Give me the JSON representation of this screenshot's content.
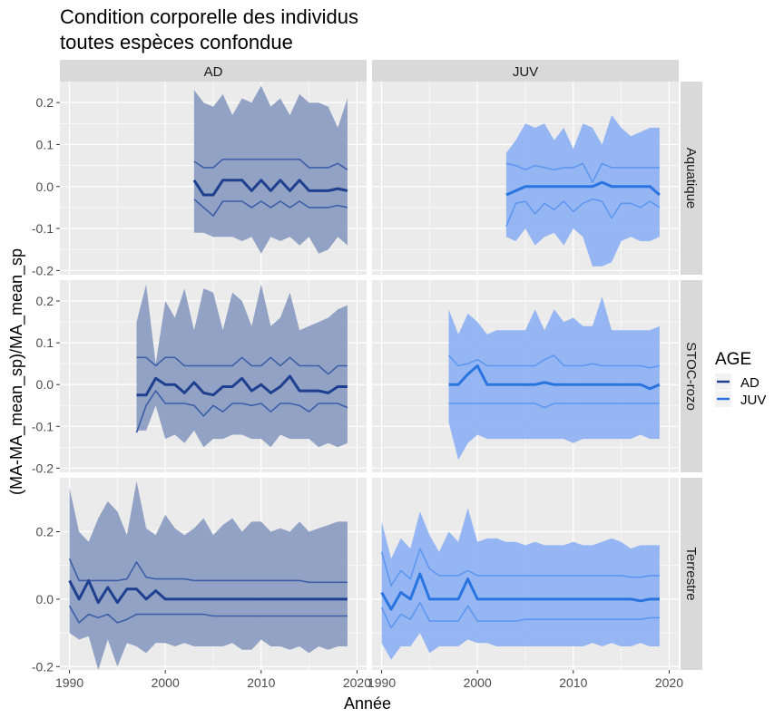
{
  "chart_data": {
    "type": "line",
    "title": "Condition corporelle des individus\ntoutes espèces confondue",
    "title_lines": [
      "Condition corporelle des individus",
      "toutes espèces confondue"
    ],
    "xlabel": "Année",
    "ylabel": "(MA-MA_mean_sp)/MA_mean_sp",
    "xlim": [
      1989,
      2021
    ],
    "x_ticks": [
      1990,
      2000,
      2010,
      2020
    ],
    "facet_columns": [
      "AD",
      "JUV"
    ],
    "facet_rows": [
      {
        "label": "Aquatique",
        "ylim": [
          -0.21,
          0.25
        ],
        "y_ticks": [
          -0.2,
          -0.1,
          0.0,
          0.1,
          0.2
        ],
        "y_tick_labels": [
          "-0.2",
          "-0.1",
          "0.0",
          "0.1",
          "0.2"
        ]
      },
      {
        "label": "STOC-rozo",
        "ylim": [
          -0.21,
          0.25
        ],
        "y_ticks": [
          -0.2,
          -0.1,
          0.0,
          0.1,
          0.2
        ],
        "y_tick_labels": [
          "-0.2",
          "-0.1",
          "0.0",
          "0.1",
          "0.2"
        ]
      },
      {
        "label": "Terrestre",
        "ylim": [
          -0.21,
          0.36
        ],
        "y_ticks": [
          -0.2,
          0.0,
          0.2
        ],
        "y_tick_labels": [
          "-0.2",
          "0.0",
          "0.2"
        ]
      }
    ],
    "legend": {
      "title": "AGE",
      "position": "right",
      "entries": [
        {
          "label": "AD",
          "color": "#1f3f8f"
        },
        {
          "label": "JUV",
          "color": "#2a74e0"
        }
      ]
    },
    "colors": {
      "AD": {
        "line": "#1f3f8f",
        "inner": "#3c5fa8",
        "ribbon": "#8a9bc0"
      },
      "JUV": {
        "line": "#2a74e0",
        "inner": "#5f97ee",
        "ribbon": "#8db1f3"
      },
      "panel_bg": "#ebebeb",
      "strip_bg": "#d9d9d9"
    },
    "panels": [
      {
        "row": "Aquatique",
        "col": "AD",
        "age": "AD",
        "x": [
          2003,
          2004,
          2005,
          2006,
          2007,
          2008,
          2009,
          2010,
          2011,
          2012,
          2013,
          2014,
          2015,
          2016,
          2017,
          2018,
          2019
        ],
        "mean": [
          0.015,
          -0.02,
          -0.02,
          0.015,
          0.015,
          0.015,
          -0.01,
          0.015,
          -0.01,
          0.015,
          -0.01,
          0.015,
          -0.01,
          -0.01,
          -0.01,
          -0.005,
          -0.01
        ],
        "inner_upper": [
          0.06,
          0.045,
          0.045,
          0.065,
          0.065,
          0.065,
          0.065,
          0.065,
          0.065,
          0.065,
          0.065,
          0.065,
          0.045,
          0.045,
          0.045,
          0.055,
          0.04
        ],
        "inner_lower": [
          -0.03,
          -0.05,
          -0.07,
          -0.035,
          -0.035,
          -0.035,
          -0.05,
          -0.035,
          -0.05,
          -0.035,
          -0.05,
          -0.035,
          -0.05,
          -0.05,
          -0.05,
          -0.045,
          -0.05
        ],
        "ribbon_upper": [
          0.23,
          0.2,
          0.19,
          0.22,
          0.17,
          0.21,
          0.2,
          0.24,
          0.19,
          0.21,
          0.17,
          0.22,
          0.2,
          0.2,
          0.19,
          0.14,
          0.21
        ],
        "ribbon_lower": [
          -0.11,
          -0.11,
          -0.12,
          -0.12,
          -0.12,
          -0.13,
          -0.12,
          -0.16,
          -0.12,
          -0.13,
          -0.12,
          -0.14,
          -0.12,
          -0.16,
          -0.15,
          -0.12,
          -0.14
        ]
      },
      {
        "row": "Aquatique",
        "col": "JUV",
        "age": "JUV",
        "x": [
          2003,
          2004,
          2005,
          2006,
          2007,
          2008,
          2009,
          2010,
          2011,
          2012,
          2013,
          2014,
          2015,
          2016,
          2017,
          2018,
          2019
        ],
        "mean": [
          -0.02,
          -0.01,
          0.0,
          0.0,
          0.0,
          0.0,
          0.0,
          0.0,
          0.0,
          0.0,
          0.01,
          0.0,
          0.0,
          0.0,
          0.0,
          0.0,
          -0.02
        ],
        "inner_upper": [
          0.055,
          0.05,
          0.04,
          0.05,
          0.045,
          0.04,
          0.045,
          0.045,
          0.055,
          0.01,
          0.055,
          0.045,
          0.045,
          0.045,
          0.045,
          0.045,
          0.045
        ],
        "inner_lower": [
          -0.095,
          -0.04,
          -0.035,
          -0.065,
          -0.04,
          -0.055,
          -0.035,
          -0.06,
          -0.04,
          -0.03,
          -0.035,
          -0.075,
          -0.04,
          -0.04,
          -0.05,
          -0.035,
          -0.05
        ],
        "ribbon_upper": [
          0.08,
          0.11,
          0.15,
          0.14,
          0.15,
          0.11,
          0.14,
          0.09,
          0.15,
          0.14,
          0.1,
          0.17,
          0.14,
          0.12,
          0.13,
          0.14,
          0.14
        ],
        "ribbon_lower": [
          -0.12,
          -0.13,
          -0.1,
          -0.14,
          -0.12,
          -0.11,
          -0.14,
          -0.1,
          -0.12,
          -0.19,
          -0.19,
          -0.18,
          -0.13,
          -0.12,
          -0.13,
          -0.13,
          -0.12
        ]
      },
      {
        "row": "STOC-rozo",
        "col": "AD",
        "age": "AD",
        "x": [
          1997,
          1998,
          1999,
          2000,
          2001,
          2002,
          2003,
          2004,
          2005,
          2006,
          2007,
          2008,
          2009,
          2010,
          2011,
          2012,
          2013,
          2014,
          2015,
          2016,
          2017,
          2018,
          2019
        ],
        "mean": [
          -0.025,
          -0.025,
          0.015,
          0.0,
          0.0,
          -0.02,
          0.005,
          -0.02,
          -0.025,
          -0.005,
          -0.005,
          0.015,
          -0.015,
          0.0,
          -0.02,
          -0.005,
          0.02,
          -0.015,
          -0.015,
          -0.015,
          -0.02,
          -0.005,
          -0.005
        ],
        "inner_upper": [
          0.065,
          0.065,
          0.045,
          0.065,
          0.065,
          0.045,
          0.045,
          0.045,
          0.045,
          0.045,
          0.045,
          0.065,
          0.045,
          0.045,
          0.065,
          0.045,
          0.065,
          0.045,
          0.045,
          0.045,
          0.025,
          0.045,
          0.045
        ],
        "inner_lower": [
          -0.115,
          -0.05,
          -0.015,
          -0.045,
          -0.045,
          -0.045,
          -0.05,
          -0.075,
          -0.05,
          -0.065,
          -0.045,
          -0.045,
          -0.05,
          -0.045,
          -0.065,
          -0.045,
          -0.045,
          -0.05,
          -0.065,
          -0.045,
          -0.045,
          -0.045,
          -0.055
        ],
        "ribbon_upper": [
          0.15,
          0.24,
          0.05,
          0.2,
          0.16,
          0.23,
          0.13,
          0.23,
          0.22,
          0.13,
          0.22,
          0.2,
          0.14,
          0.24,
          0.14,
          0.16,
          0.22,
          0.13,
          0.14,
          0.15,
          0.16,
          0.18,
          0.19
        ],
        "ribbon_lower": [
          -0.11,
          -0.11,
          -0.05,
          -0.13,
          -0.12,
          -0.14,
          -0.11,
          -0.15,
          -0.13,
          -0.13,
          -0.12,
          -0.12,
          -0.13,
          -0.13,
          -0.15,
          -0.12,
          -0.13,
          -0.13,
          -0.13,
          -0.15,
          -0.14,
          -0.15,
          -0.14
        ]
      },
      {
        "row": "STOC-rozo",
        "col": "JUV",
        "age": "JUV",
        "x": [
          1997,
          1998,
          1999,
          2000,
          2001,
          2002,
          2003,
          2004,
          2005,
          2006,
          2007,
          2008,
          2009,
          2010,
          2011,
          2012,
          2013,
          2014,
          2015,
          2016,
          2017,
          2018,
          2019
        ],
        "mean": [
          0.0,
          0.0,
          0.025,
          0.045,
          0.0,
          0.0,
          0.0,
          0.0,
          0.0,
          0.0,
          0.005,
          0.0,
          0.0,
          0.0,
          0.0,
          0.0,
          0.0,
          0.0,
          0.0,
          0.0,
          0.0,
          -0.01,
          0.0
        ],
        "inner_upper": [
          0.07,
          0.045,
          0.05,
          0.06,
          0.045,
          0.045,
          0.045,
          0.045,
          0.045,
          0.045,
          0.06,
          0.07,
          0.045,
          0.045,
          0.045,
          0.05,
          0.045,
          0.045,
          0.045,
          0.045,
          0.045,
          0.04,
          0.045
        ],
        "inner_lower": [
          -0.045,
          -0.045,
          -0.045,
          -0.045,
          -0.045,
          -0.045,
          -0.045,
          -0.045,
          -0.045,
          -0.045,
          -0.055,
          -0.045,
          -0.045,
          -0.045,
          -0.045,
          -0.045,
          -0.045,
          -0.045,
          -0.045,
          -0.045,
          -0.045,
          -0.045,
          -0.045
        ],
        "ribbon_upper": [
          0.18,
          0.12,
          0.17,
          0.15,
          0.12,
          0.13,
          0.13,
          0.13,
          0.13,
          0.18,
          0.13,
          0.18,
          0.15,
          0.16,
          0.14,
          0.14,
          0.21,
          0.13,
          0.13,
          0.13,
          0.13,
          0.13,
          0.14
        ],
        "ribbon_lower": [
          -0.09,
          -0.18,
          -0.14,
          -0.12,
          -0.13,
          -0.13,
          -0.13,
          -0.13,
          -0.13,
          -0.13,
          -0.13,
          -0.13,
          -0.13,
          -0.14,
          -0.13,
          -0.13,
          -0.13,
          -0.13,
          -0.13,
          -0.13,
          -0.12,
          -0.13,
          -0.13
        ]
      },
      {
        "row": "Terrestre",
        "col": "AD",
        "age": "AD",
        "x": [
          1990,
          1991,
          1992,
          1993,
          1994,
          1995,
          1996,
          1997,
          1998,
          1999,
          2000,
          2001,
          2002,
          2003,
          2004,
          2005,
          2006,
          2007,
          2008,
          2009,
          2010,
          2011,
          2012,
          2013,
          2014,
          2015,
          2016,
          2017,
          2018,
          2019
        ],
        "mean": [
          0.055,
          0.0,
          0.055,
          -0.01,
          0.035,
          -0.01,
          0.03,
          0.03,
          0.0,
          0.025,
          0.0,
          0.0,
          0.0,
          0.0,
          0.0,
          0.0,
          0.0,
          0.0,
          0.0,
          0.0,
          0.0,
          0.0,
          0.0,
          0.0,
          0.0,
          0.0,
          0.0,
          0.0,
          0.0,
          0.0
        ],
        "inner_upper": [
          0.12,
          0.055,
          0.055,
          0.055,
          0.055,
          0.055,
          0.06,
          0.11,
          0.065,
          0.06,
          0.06,
          0.06,
          0.06,
          0.055,
          0.055,
          0.055,
          0.055,
          0.055,
          0.055,
          0.055,
          0.055,
          0.055,
          0.055,
          0.055,
          0.055,
          0.05,
          0.05,
          0.05,
          0.05,
          0.05
        ],
        "inner_lower": [
          -0.02,
          -0.07,
          -0.045,
          -0.055,
          -0.045,
          -0.07,
          -0.06,
          -0.045,
          -0.045,
          -0.045,
          -0.045,
          -0.045,
          -0.045,
          -0.045,
          -0.045,
          -0.05,
          -0.05,
          -0.05,
          -0.05,
          -0.05,
          -0.05,
          -0.05,
          -0.05,
          -0.05,
          -0.05,
          -0.05,
          -0.05,
          -0.05,
          -0.05,
          -0.05
        ],
        "ribbon_upper": [
          0.33,
          0.2,
          0.17,
          0.24,
          0.29,
          0.26,
          0.19,
          0.35,
          0.21,
          0.19,
          0.25,
          0.21,
          0.19,
          0.21,
          0.24,
          0.19,
          0.22,
          0.24,
          0.2,
          0.23,
          0.23,
          0.2,
          0.21,
          0.2,
          0.23,
          0.2,
          0.21,
          0.22,
          0.23,
          0.23
        ],
        "ribbon_lower": [
          -0.1,
          -0.12,
          -0.11,
          -0.21,
          -0.12,
          -0.2,
          -0.13,
          -0.14,
          -0.16,
          -0.13,
          -0.13,
          -0.14,
          -0.13,
          -0.14,
          -0.14,
          -0.14,
          -0.14,
          -0.13,
          -0.15,
          -0.15,
          -0.12,
          -0.14,
          -0.14,
          -0.15,
          -0.14,
          -0.16,
          -0.14,
          -0.15,
          -0.14,
          -0.14
        ]
      },
      {
        "row": "Terrestre",
        "col": "JUV",
        "age": "JUV",
        "x": [
          1990,
          1991,
          1992,
          1993,
          1994,
          1995,
          1996,
          1997,
          1998,
          1999,
          2000,
          2001,
          2002,
          2003,
          2004,
          2005,
          2006,
          2007,
          2008,
          2009,
          2010,
          2011,
          2012,
          2013,
          2014,
          2015,
          2016,
          2017,
          2018,
          2019
        ],
        "mean": [
          0.02,
          -0.03,
          0.02,
          0.0,
          0.075,
          0.0,
          0.0,
          0.0,
          0.0,
          0.06,
          0.0,
          0.0,
          0.0,
          0.0,
          0.0,
          0.0,
          0.0,
          0.0,
          0.0,
          0.0,
          0.0,
          0.0,
          0.0,
          0.0,
          0.0,
          0.0,
          0.0,
          -0.005,
          0.0,
          0.0
        ],
        "inner_upper": [
          0.14,
          0.04,
          0.085,
          0.06,
          0.15,
          0.09,
          0.07,
          0.07,
          0.07,
          0.085,
          0.07,
          0.07,
          0.07,
          0.07,
          0.07,
          0.07,
          0.07,
          0.07,
          0.07,
          0.07,
          0.07,
          0.07,
          0.07,
          0.07,
          0.07,
          0.07,
          0.065,
          0.065,
          0.07,
          0.07
        ],
        "inner_lower": [
          -0.025,
          -0.085,
          -0.045,
          -0.06,
          -0.01,
          -0.065,
          -0.065,
          -0.065,
          -0.065,
          -0.02,
          -0.065,
          -0.065,
          -0.065,
          -0.065,
          -0.065,
          -0.06,
          -0.06,
          -0.06,
          -0.06,
          -0.06,
          -0.06,
          -0.06,
          -0.06,
          -0.06,
          -0.06,
          -0.06,
          -0.06,
          -0.06,
          -0.055,
          -0.055
        ],
        "ribbon_upper": [
          0.23,
          0.12,
          0.18,
          0.15,
          0.26,
          0.19,
          0.14,
          0.2,
          0.17,
          0.27,
          0.17,
          0.18,
          0.18,
          0.17,
          0.17,
          0.16,
          0.17,
          0.16,
          0.16,
          0.16,
          0.17,
          0.16,
          0.16,
          0.17,
          0.18,
          0.17,
          0.15,
          0.16,
          0.16,
          0.16
        ],
        "ribbon_lower": [
          -0.13,
          -0.18,
          -0.14,
          -0.14,
          -0.1,
          -0.16,
          -0.14,
          -0.14,
          -0.14,
          -0.12,
          -0.13,
          -0.13,
          -0.14,
          -0.14,
          -0.14,
          -0.14,
          -0.14,
          -0.14,
          -0.14,
          -0.14,
          -0.14,
          -0.14,
          -0.13,
          -0.14,
          -0.13,
          -0.14,
          -0.14,
          -0.13,
          -0.14,
          -0.14
        ]
      }
    ]
  }
}
